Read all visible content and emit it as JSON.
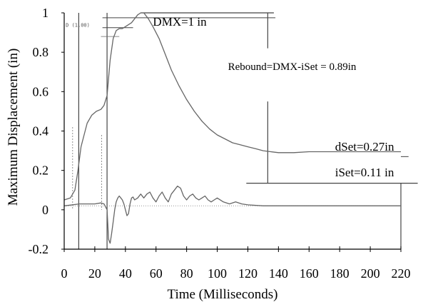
{
  "chart_data": {
    "type": "line",
    "xlabel": "Time (Milliseconds)",
    "ylabel": "Maximum Displacement (in)",
    "xlim": [
      0,
      220
    ],
    "ylim": [
      -0.2,
      1
    ],
    "x_ticks": [
      0,
      20,
      40,
      60,
      80,
      100,
      120,
      140,
      160,
      180,
      200,
      220
    ],
    "y_ticks": [
      -0.2,
      0,
      0.2,
      0.4,
      0.6,
      0.8,
      1
    ],
    "y_tick_labels": [
      "-0.2",
      "0",
      "0.2",
      "0.4",
      "0.6",
      "0.8",
      "1"
    ],
    "grid": false,
    "series": [
      {
        "color": "#666666",
        "x": [
          0,
          4,
          7,
          9,
          11,
          13,
          15,
          18,
          21,
          24,
          26,
          28,
          30,
          32,
          34,
          36,
          38,
          40,
          42,
          44,
          46,
          48,
          50,
          52,
          55,
          58,
          62,
          66,
          70,
          75,
          80,
          85,
          90,
          95,
          100,
          105,
          110,
          115,
          120,
          125,
          130,
          135,
          140,
          150,
          160,
          170,
          180,
          190,
          200,
          220
        ],
        "y": [
          0.05,
          0.06,
          0.1,
          0.2,
          0.32,
          0.38,
          0.44,
          0.48,
          0.5,
          0.51,
          0.53,
          0.58,
          0.76,
          0.87,
          0.91,
          0.92,
          0.92,
          0.93,
          0.94,
          0.95,
          0.97,
          0.99,
          1.0,
          1.0,
          0.97,
          0.93,
          0.87,
          0.79,
          0.71,
          0.63,
          0.56,
          0.5,
          0.45,
          0.41,
          0.38,
          0.36,
          0.34,
          0.33,
          0.32,
          0.31,
          0.3,
          0.295,
          0.29,
          0.29,
          0.295,
          0.295,
          0.295,
          0.295,
          0.295,
          0.295
        ]
      },
      {
        "color": "#666666",
        "x": [
          0,
          10,
          20,
          24,
          26,
          28,
          29,
          30,
          31,
          32,
          33,
          34,
          35,
          36,
          37,
          38,
          39,
          40,
          41,
          42,
          43,
          44,
          45,
          46,
          48,
          50,
          52,
          54,
          56,
          58,
          60,
          62,
          64,
          66,
          68,
          70,
          72,
          74,
          76,
          78,
          80,
          82,
          84,
          86,
          88,
          90,
          92,
          94,
          96,
          98,
          100,
          104,
          108,
          112,
          116,
          120,
          130,
          140,
          160,
          180,
          200,
          220
        ],
        "y": [
          0.02,
          0.03,
          0.03,
          0.035,
          0.03,
          0.0,
          -0.15,
          -0.17,
          -0.12,
          -0.06,
          0.0,
          0.04,
          0.06,
          0.07,
          0.06,
          0.05,
          0.03,
          0.0,
          -0.03,
          -0.02,
          0.03,
          0.06,
          0.065,
          0.05,
          0.06,
          0.08,
          0.06,
          0.08,
          0.09,
          0.06,
          0.04,
          0.07,
          0.09,
          0.06,
          0.04,
          0.08,
          0.1,
          0.12,
          0.11,
          0.07,
          0.05,
          0.07,
          0.08,
          0.06,
          0.05,
          0.06,
          0.07,
          0.05,
          0.04,
          0.05,
          0.06,
          0.04,
          0.03,
          0.04,
          0.03,
          0.025,
          0.02,
          0.02,
          0.02,
          0.02,
          0.02,
          0.02
        ]
      }
    ],
    "annotations": [
      {
        "text": "DMX=1 in",
        "x": 58,
        "y": 0.935
      },
      {
        "text": "Rebound=DMX-iSet = 0.89in",
        "x": 107,
        "y": 0.71
      },
      {
        "text": "dSet=0.27in",
        "x": 177,
        "y": 0.3
      },
      {
        "text": "iSet=0.11 in",
        "x": 177,
        "y": 0.17
      },
      {
        "text": "D (1.00)",
        "x": 1,
        "y": 0.93
      }
    ]
  }
}
